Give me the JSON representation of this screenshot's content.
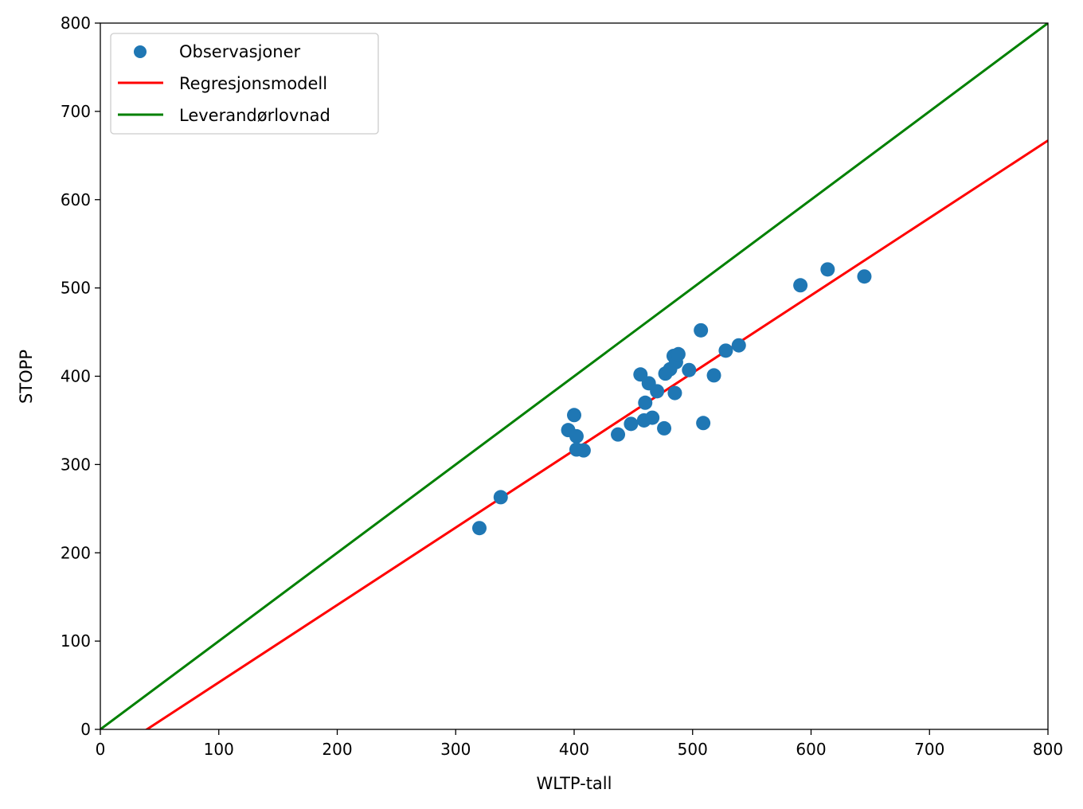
{
  "chart_data": {
    "type": "scatter",
    "title": "",
    "xlabel": "WLTP-tall",
    "ylabel": "STOPP",
    "xlim": [
      0,
      800
    ],
    "ylim": [
      0,
      800
    ],
    "xticks": [
      0,
      100,
      200,
      300,
      400,
      500,
      600,
      700,
      800
    ],
    "yticks": [
      0,
      100,
      200,
      300,
      400,
      500,
      600,
      700,
      800
    ],
    "grid": false,
    "legend_position": "top-left",
    "colors": {
      "observations": "#1f77b4",
      "regression": "#ff0000",
      "promise": "#008000"
    },
    "series": [
      {
        "name": "Observasjoner",
        "kind": "scatter",
        "points": [
          [
            320,
            228
          ],
          [
            338,
            263
          ],
          [
            395,
            339
          ],
          [
            400,
            356
          ],
          [
            402,
            332
          ],
          [
            402,
            317
          ],
          [
            408,
            316
          ],
          [
            437,
            334
          ],
          [
            448,
            346
          ],
          [
            456,
            402
          ],
          [
            459,
            350
          ],
          [
            460,
            370
          ],
          [
            463,
            392
          ],
          [
            466,
            353
          ],
          [
            470,
            383
          ],
          [
            476,
            341
          ],
          [
            477,
            403
          ],
          [
            481,
            408
          ],
          [
            484,
            423
          ],
          [
            485,
            381
          ],
          [
            486,
            416
          ],
          [
            488,
            425
          ],
          [
            497,
            407
          ],
          [
            507,
            452
          ],
          [
            509,
            347
          ],
          [
            518,
            401
          ],
          [
            528,
            429
          ],
          [
            539,
            435
          ],
          [
            591,
            503
          ],
          [
            614,
            521
          ],
          [
            645,
            513
          ]
        ]
      },
      {
        "name": "Regresjonsmodell",
        "kind": "line",
        "points": [
          [
            0,
            -34.5
          ],
          [
            800,
            667
          ]
        ]
      },
      {
        "name": "Leverandørlovnad",
        "kind": "line",
        "points": [
          [
            0,
            0
          ],
          [
            800,
            800
          ]
        ]
      }
    ]
  }
}
